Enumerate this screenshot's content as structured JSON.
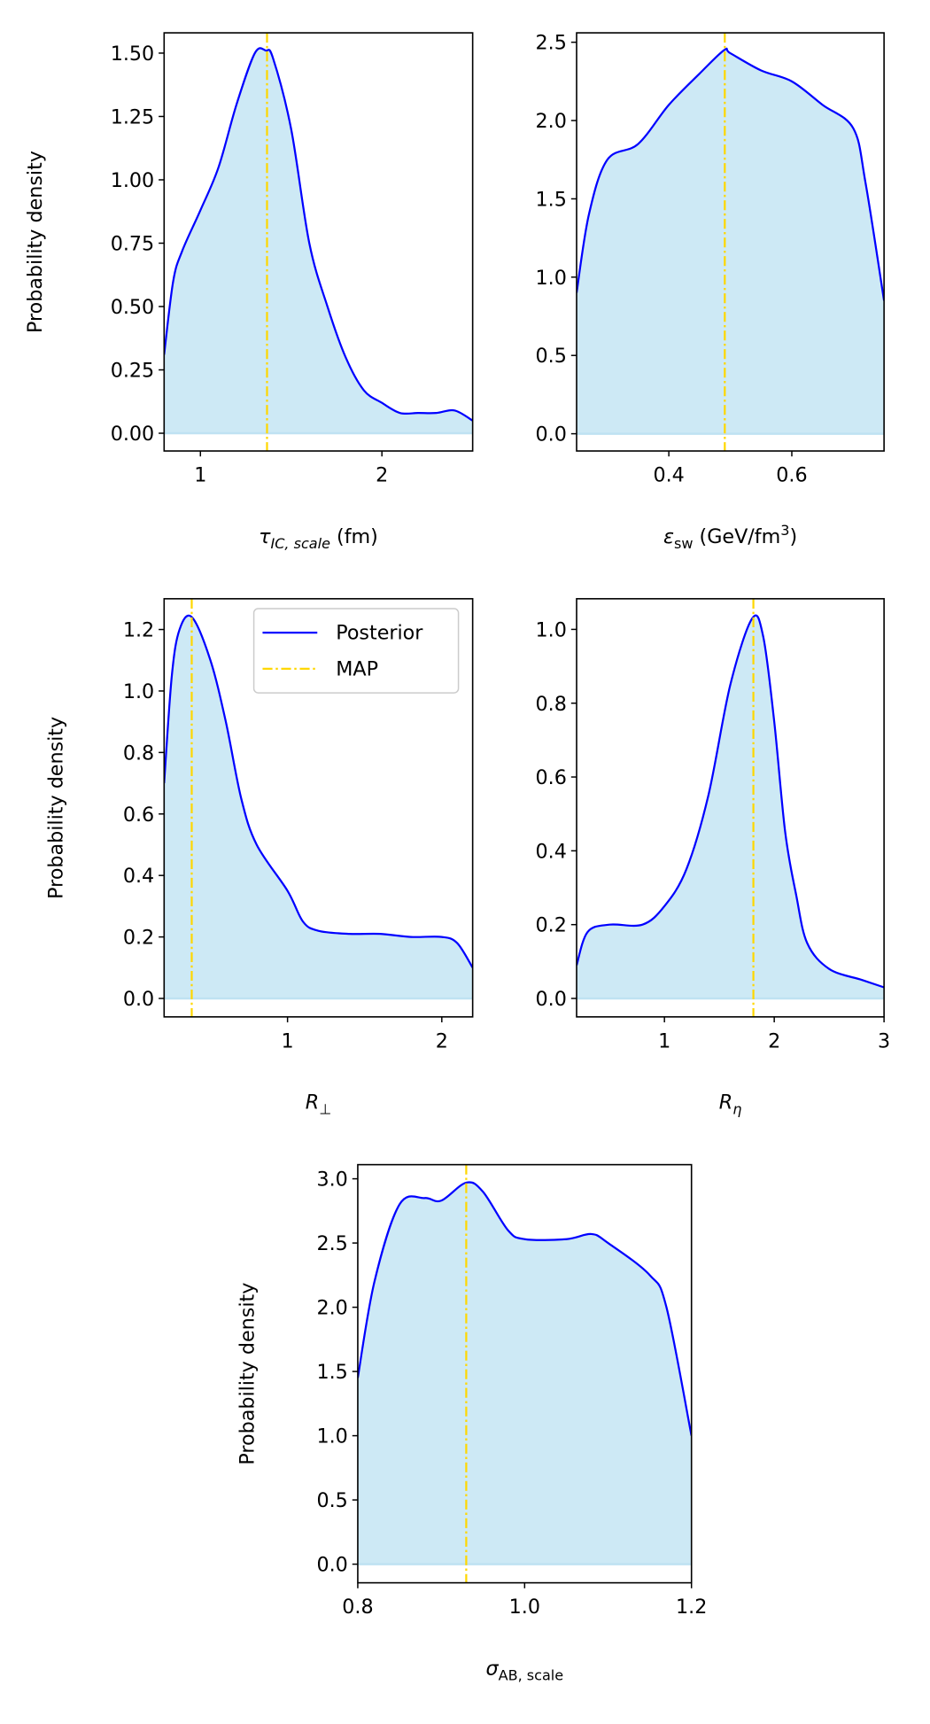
{
  "chart_data": [
    {
      "type": "density",
      "color": "#0000ff",
      "fill": "#cde9f5",
      "map_color": "#ffd700",
      "ylabel": "Probability density",
      "xlabel": [
        {
          "text": "τ",
          "italic": true
        },
        {
          "text": "IC, scale",
          "italic": true,
          "role": "sub"
        },
        {
          "text": " (fm)"
        }
      ],
      "xlim": [
        0.8,
        2.5
      ],
      "ylim": [
        -0.07,
        1.58
      ],
      "xticks": [
        1,
        2
      ],
      "yticks": [
        {
          "value": 0,
          "label": "0.00"
        },
        0.25,
        {
          "value": 0.5,
          "label": "0.50"
        },
        0.75,
        {
          "value": 1,
          "label": "1.00"
        },
        1.25,
        {
          "value": 1.5,
          "label": "1.50"
        }
      ],
      "x": [
        0.8,
        0.85,
        0.9,
        1.0,
        1.1,
        1.2,
        1.3,
        1.36,
        1.4,
        1.5,
        1.6,
        1.7,
        1.8,
        1.9,
        2.0,
        2.1,
        2.2,
        2.3,
        2.4,
        2.5
      ],
      "values": [
        0.31,
        0.6,
        0.72,
        0.88,
        1.05,
        1.3,
        1.5,
        1.51,
        1.48,
        1.2,
        0.75,
        0.5,
        0.3,
        0.17,
        0.12,
        0.08,
        0.08,
        0.08,
        0.09,
        0.05
      ],
      "map_x": 1.367
    },
    {
      "type": "density",
      "color": "#0000ff",
      "fill": "#cde9f5",
      "map_color": "#ffd700",
      "xlabel": [
        {
          "text": "ε",
          "italic": true
        },
        {
          "text": "sw",
          "role": "sub"
        },
        {
          "text": " (GeV/fm"
        },
        {
          "text": "3",
          "role": "sup"
        },
        {
          "text": ")"
        }
      ],
      "xlim": [
        0.25,
        0.75
      ],
      "ylim": [
        -0.11,
        2.56
      ],
      "xticks": [
        0.4,
        0.6
      ],
      "yticks": [
        {
          "value": 0,
          "label": "0.0"
        },
        0.5,
        {
          "value": 1,
          "label": "1.0"
        },
        1.5,
        {
          "value": 2,
          "label": "2.0"
        },
        2.5
      ],
      "x": [
        0.25,
        0.27,
        0.3,
        0.35,
        0.4,
        0.45,
        0.49,
        0.5,
        0.55,
        0.6,
        0.65,
        0.7,
        0.72,
        0.75
      ],
      "values": [
        0.9,
        1.4,
        1.75,
        1.85,
        2.1,
        2.3,
        2.45,
        2.43,
        2.32,
        2.25,
        2.1,
        1.95,
        1.6,
        0.85
      ],
      "map_x": 0.491
    },
    {
      "type": "density",
      "color": "#0000ff",
      "fill": "#cde9f5",
      "map_color": "#ffd700",
      "ylabel": "Probability density",
      "xlabel": [
        {
          "text": "R",
          "italic": true
        },
        {
          "text": "⊥",
          "role": "sub"
        }
      ],
      "xlim": [
        0.2,
        2.2
      ],
      "ylim": [
        -0.06,
        1.3
      ],
      "xticks": [
        1,
        2
      ],
      "yticks": [
        {
          "value": 0,
          "label": "0.0"
        },
        0.2,
        0.4,
        0.6,
        0.8,
        {
          "value": 1,
          "label": "1.0"
        },
        1.2
      ],
      "x": [
        0.2,
        0.25,
        0.3,
        0.38,
        0.5,
        0.6,
        0.7,
        0.8,
        1.0,
        1.1,
        1.2,
        1.4,
        1.6,
        1.8,
        2.0,
        2.1,
        2.2
      ],
      "values": [
        0.7,
        1.05,
        1.2,
        1.24,
        1.1,
        0.9,
        0.65,
        0.5,
        0.35,
        0.25,
        0.22,
        0.21,
        0.21,
        0.2,
        0.2,
        0.18,
        0.1
      ],
      "map_x": 0.379,
      "legend": {
        "corner": "upper right",
        "labels": [
          "Posterior",
          "MAP"
        ]
      }
    },
    {
      "type": "density",
      "color": "#0000ff",
      "fill": "#cde9f5",
      "map_color": "#ffd700",
      "xlabel": [
        {
          "text": "R",
          "italic": true
        },
        {
          "text": "η",
          "italic": true,
          "role": "sub"
        }
      ],
      "xlim": [
        0.2,
        3
      ],
      "ylim": [
        -0.05,
        1.083
      ],
      "xticks": [
        1,
        2,
        3
      ],
      "yticks": [
        {
          "value": 0,
          "label": "0.0"
        },
        0.2,
        0.4,
        0.6,
        0.8,
        {
          "value": 1,
          "label": "1.0"
        }
      ],
      "x": [
        0.2,
        0.3,
        0.5,
        0.8,
        1.0,
        1.2,
        1.4,
        1.6,
        1.8,
        1.9,
        2.0,
        2.1,
        2.2,
        2.3,
        2.5,
        2.8,
        3.0
      ],
      "values": [
        0.09,
        0.18,
        0.2,
        0.2,
        0.25,
        0.35,
        0.55,
        0.85,
        1.03,
        0.98,
        0.75,
        0.45,
        0.28,
        0.15,
        0.08,
        0.05,
        0.03
      ],
      "map_x": 1.81
    },
    {
      "type": "density",
      "color": "#0000ff",
      "fill": "#cde9f5",
      "map_color": "#ffd700",
      "ylabel": "Probability density",
      "xlabel": [
        {
          "text": "σ",
          "italic": true
        },
        {
          "text": "AB, scale",
          "role": "sub"
        }
      ],
      "xlim": [
        0.8,
        1.2
      ],
      "ylim": [
        -0.145,
        3.11
      ],
      "xticks": [
        0.8,
        {
          "value": 1,
          "label": "1.0"
        },
        1.2
      ],
      "yticks": [
        {
          "value": 0,
          "label": "0.0"
        },
        0.5,
        {
          "value": 1,
          "label": "1.0"
        },
        1.5,
        {
          "value": 2,
          "label": "2.0"
        },
        2.5,
        {
          "value": 3,
          "label": "3.0"
        }
      ],
      "x": [
        0.8,
        0.82,
        0.85,
        0.88,
        0.9,
        0.93,
        0.95,
        0.98,
        1.0,
        1.05,
        1.08,
        1.1,
        1.15,
        1.17,
        1.2
      ],
      "values": [
        1.45,
        2.2,
        2.8,
        2.85,
        2.83,
        2.97,
        2.9,
        2.6,
        2.53,
        2.53,
        2.57,
        2.5,
        2.25,
        2.0,
        1.0
      ],
      "map_x": 0.93
    }
  ]
}
